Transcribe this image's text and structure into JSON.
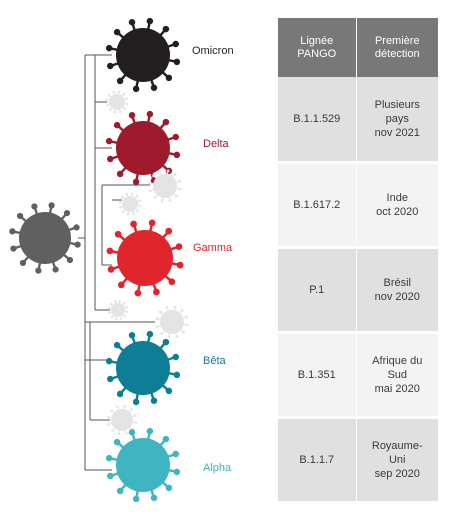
{
  "table": {
    "headers": [
      "Lignée\nPANGO",
      "Première\ndétection"
    ],
    "rows": [
      {
        "lineage": "B.1.1.529",
        "detection": "Plusieurs\npays\nnov 2021"
      },
      {
        "lineage": "B.1.617.2",
        "detection": "Inde\noct 2020"
      },
      {
        "lineage": "P.1",
        "detection": "Brésil\nnov 2020"
      },
      {
        "lineage": "B.1.351",
        "detection": "Afrique du\nSud\nmai 2020"
      },
      {
        "lineage": "B.1.1.7",
        "detection": "Royaume-\nUni\nsep 2020"
      }
    ]
  },
  "variants": [
    {
      "name": "Omicron",
      "color": "#231f20",
      "label_color": "#231f20"
    },
    {
      "name": "Delta",
      "color": "#9e1b2e",
      "label_color": "#9e1b2e"
    },
    {
      "name": "Gamma",
      "color": "#e0262c",
      "label_color": "#e0262c"
    },
    {
      "name": "Bêta",
      "color": "#0e7d96",
      "label_color": "#0e7d96"
    },
    {
      "name": "Alpha",
      "color": "#3fb5c1",
      "label_color": "#3fb5c1"
    }
  ],
  "ancestor_color": "#606060",
  "minor_color": "#e4e4e4",
  "branch_color": "#555555"
}
